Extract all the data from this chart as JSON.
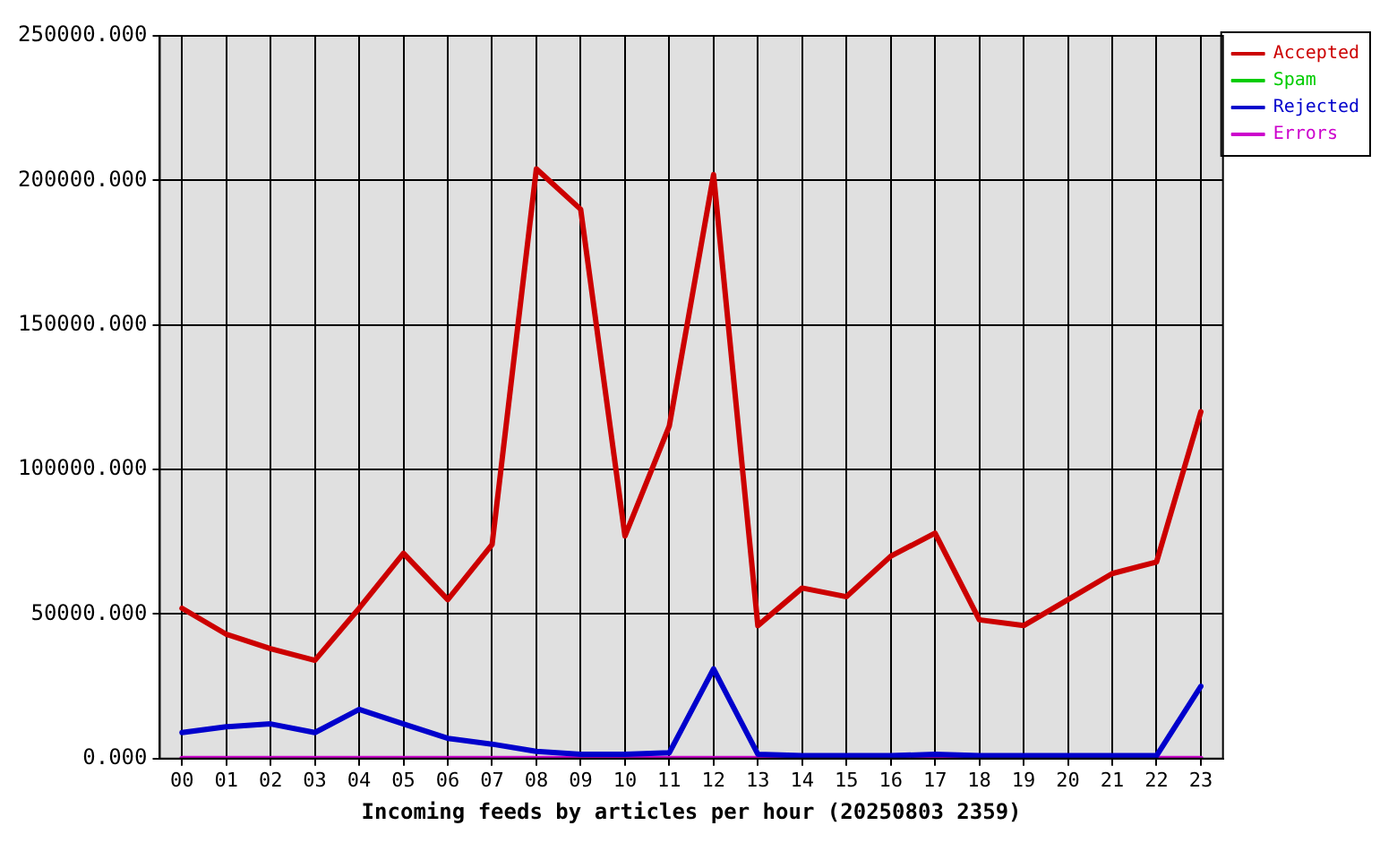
{
  "chart_data": {
    "type": "line",
    "xlabel": "Incoming feeds by articles per hour (20250803 2359)",
    "categories": [
      "00",
      "01",
      "02",
      "03",
      "04",
      "05",
      "06",
      "07",
      "08",
      "09",
      "10",
      "11",
      "12",
      "13",
      "14",
      "15",
      "16",
      "17",
      "18",
      "19",
      "20",
      "21",
      "22",
      "23"
    ],
    "series": [
      {
        "name": "Accepted",
        "color": "#cc0000",
        "values": [
          52000,
          43000,
          38000,
          34000,
          52000,
          71000,
          55000,
          74000,
          204000,
          190000,
          77000,
          115000,
          202000,
          46000,
          59000,
          56000,
          70000,
          78000,
          48000,
          46000,
          55000,
          64000,
          68000,
          120000
        ]
      },
      {
        "name": "Spam",
        "color": "#00cc00",
        "values": [
          null,
          null,
          null,
          null,
          null,
          null,
          null,
          null,
          null,
          null,
          null,
          null,
          null,
          null,
          null,
          null,
          null,
          null,
          null,
          null,
          null,
          null,
          null,
          null
        ]
      },
      {
        "name": "Rejected",
        "color": "#0000cc",
        "values": [
          9000,
          11000,
          12000,
          9000,
          17000,
          12000,
          7000,
          5000,
          2500,
          1500,
          1500,
          2000,
          31000,
          1500,
          1000,
          1000,
          1000,
          1500,
          1000,
          1000,
          1000,
          1000,
          1000,
          25000
        ]
      },
      {
        "name": "Errors",
        "color": "#cc00cc",
        "values": [
          0,
          0,
          0,
          0,
          0,
          0,
          0,
          0,
          0,
          0,
          0,
          0,
          0,
          0,
          0,
          0,
          0,
          0,
          0,
          0,
          0,
          0,
          0,
          0
        ]
      }
    ],
    "ylim": [
      0,
      250000
    ],
    "yticks": [
      {
        "value": 0,
        "label": "0.000"
      },
      {
        "value": 50000,
        "label": "50000.000"
      },
      {
        "value": 100000,
        "label": "100000.000"
      },
      {
        "value": 150000,
        "label": "150000.000"
      },
      {
        "value": 200000,
        "label": "200000.000"
      },
      {
        "value": 250000,
        "label": "250000.000"
      }
    ],
    "grid": true,
    "legend": "top right"
  }
}
